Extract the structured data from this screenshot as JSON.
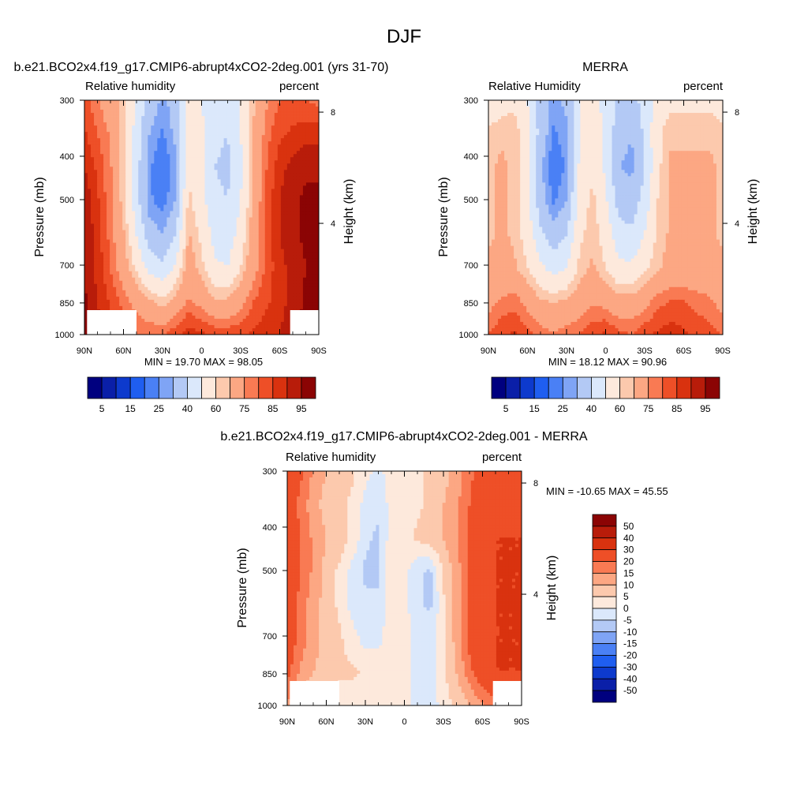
{
  "page_title": "DJF",
  "colors": {
    "rh_levels": [
      "#00007f",
      "#0a1fa8",
      "#0d3acd",
      "#1f5ef0",
      "#4a80f5",
      "#7fa4f5",
      "#b3c9f5",
      "#dbe8fb",
      "#fde9dc",
      "#fcc9ad",
      "#fca783",
      "#f97a53",
      "#ee4f27",
      "#d9320f",
      "#b81c0a",
      "#8b0404"
    ],
    "diff_levels": [
      "#00007f",
      "#0a1fa8",
      "#0d3acd",
      "#1f5ef0",
      "#4a80f5",
      "#7fa4f5",
      "#b3c9f5",
      "#dbe8fb",
      "#fde9dc",
      "#fcc9ad",
      "#fca783",
      "#f97a53",
      "#ee4f27",
      "#d9320f",
      "#b81c0a",
      "#8b0404"
    ],
    "missing": "#ffffff"
  },
  "chart_data": [
    {
      "id": "model",
      "type": "heatmap",
      "title": "b.e21.BCO2x4.f19_g17.CMIP6-abrupt4xCO2-2deg.001 (yrs 31-70)",
      "left_subtitle": "Relative humidity",
      "right_subtitle": "percent",
      "ylabel": "Pressure (mb)",
      "y2label": "Height (km)",
      "x_ticks": [
        "90N",
        "60N",
        "30N",
        "0",
        "30S",
        "60S",
        "90S"
      ],
      "y_ticks": [
        "300",
        "400",
        "500",
        "700",
        "850",
        "1000"
      ],
      "y2_ticks": [
        "8",
        "4"
      ],
      "stats": "MIN =  19.70  MAX =  98.05",
      "xlim": [
        90,
        -90
      ],
      "ylim": [
        1000,
        300
      ],
      "rows": [
        [
          82,
          76,
          70,
          62,
          48,
          36,
          28,
          34,
          52,
          50,
          44,
          42,
          50,
          64,
          74,
          80,
          82,
          80,
          78
        ],
        [
          86,
          80,
          74,
          62,
          46,
          30,
          24,
          32,
          56,
          52,
          42,
          40,
          50,
          66,
          78,
          84,
          86,
          88,
          88
        ],
        [
          90,
          84,
          76,
          62,
          44,
          26,
          20,
          28,
          58,
          52,
          40,
          38,
          48,
          66,
          80,
          88,
          92,
          94,
          94
        ],
        [
          94,
          86,
          76,
          62,
          44,
          26,
          22,
          30,
          62,
          54,
          42,
          40,
          50,
          68,
          82,
          90,
          94,
          96,
          96
        ],
        [
          94,
          88,
          78,
          66,
          50,
          34,
          30,
          40,
          66,
          58,
          46,
          44,
          54,
          70,
          82,
          90,
          94,
          96,
          96
        ],
        [
          95,
          88,
          80,
          70,
          58,
          46,
          42,
          52,
          70,
          62,
          52,
          50,
          60,
          72,
          82,
          88,
          92,
          95,
          95
        ],
        [
          96,
          90,
          84,
          78,
          72,
          66,
          62,
          68,
          76,
          72,
          66,
          66,
          72,
          80,
          84,
          88,
          92,
          96,
          96
        ],
        [
          97,
          92,
          88,
          84,
          80,
          80,
          80,
          84,
          88,
          86,
          84,
          84,
          84,
          86,
          88,
          90,
          94,
          97,
          97
        ]
      ],
      "missing_bottom": [
        [
          -90,
          -68
        ],
        [
          50,
          88
        ]
      ],
      "colorbar": {
        "orientation": "horizontal",
        "levels": [
          5,
          10,
          15,
          20,
          25,
          30,
          40,
          50,
          60,
          65,
          75,
          80,
          85,
          90,
          95
        ],
        "labels": [
          "5",
          "15",
          "25",
          "40",
          "60",
          "75",
          "85",
          "95"
        ]
      }
    },
    {
      "id": "obs",
      "type": "heatmap",
      "title": "MERRA",
      "left_subtitle": "Relative Humidity",
      "right_subtitle": "percent",
      "ylabel": "Pressure (mb)",
      "y2label": "Height (km)",
      "x_ticks": [
        "90N",
        "60N",
        "30N",
        "0",
        "30S",
        "60S",
        "90S"
      ],
      "y_ticks": [
        "300",
        "400",
        "500",
        "700",
        "850",
        "1000"
      ],
      "y2_ticks": [
        "8",
        "4"
      ],
      "stats": "MIN =  18.12  MAX =  90.96",
      "xlim": [
        90,
        -90
      ],
      "ylim": [
        1000,
        300
      ],
      "rows": [
        [
          52,
          56,
          58,
          50,
          36,
          28,
          32,
          50,
          52,
          48,
          38,
          36,
          44,
          54,
          58,
          58,
          58,
          58,
          56
        ],
        [
          62,
          64,
          64,
          54,
          36,
          24,
          28,
          50,
          56,
          48,
          34,
          30,
          42,
          58,
          64,
          64,
          64,
          64,
          62
        ],
        [
          64,
          66,
          64,
          52,
          32,
          20,
          26,
          52,
          58,
          48,
          30,
          28,
          40,
          58,
          66,
          66,
          66,
          66,
          64
        ],
        [
          64,
          66,
          64,
          52,
          34,
          24,
          30,
          54,
          62,
          52,
          36,
          34,
          44,
          60,
          66,
          66,
          66,
          66,
          64
        ],
        [
          64,
          66,
          64,
          56,
          42,
          34,
          40,
          58,
          64,
          56,
          44,
          42,
          50,
          62,
          66,
          66,
          66,
          66,
          64
        ],
        [
          66,
          68,
          66,
          60,
          52,
          46,
          50,
          62,
          66,
          60,
          52,
          52,
          58,
          64,
          68,
          68,
          68,
          68,
          66
        ],
        [
          72,
          76,
          78,
          72,
          66,
          64,
          66,
          70,
          74,
          72,
          68,
          68,
          72,
          78,
          80,
          80,
          78,
          76,
          72
        ],
        [
          80,
          84,
          86,
          82,
          78,
          76,
          78,
          80,
          84,
          86,
          82,
          80,
          84,
          86,
          88,
          86,
          84,
          82,
          80
        ]
      ],
      "missing_bottom": [],
      "colorbar": {
        "orientation": "horizontal",
        "levels": [
          5,
          10,
          15,
          20,
          25,
          30,
          40,
          50,
          60,
          65,
          75,
          80,
          85,
          90,
          95
        ],
        "labels": [
          "5",
          "15",
          "25",
          "40",
          "60",
          "75",
          "85",
          "95"
        ]
      }
    },
    {
      "id": "diff",
      "type": "heatmap",
      "title": "b.e21.BCO2x4.f19_g17.CMIP6-abrupt4xCO2-2deg.001 - MERRA",
      "left_subtitle": "Relative humidity",
      "right_subtitle": "percent",
      "ylabel": "Pressure (mb)",
      "y2label": "Height (km)",
      "x_ticks": [
        "90N",
        "60N",
        "30N",
        "0",
        "30S",
        "60S",
        "90S"
      ],
      "y_ticks": [
        "300",
        "400",
        "500",
        "700",
        "850",
        "1000"
      ],
      "y2_ticks": [
        "8",
        "4"
      ],
      "stats": "MIN = -10.65  MAX =  45.55",
      "xlim": [
        90,
        -90
      ],
      "ylim": [
        1000,
        300
      ],
      "rows": [
        [
          30,
          22,
          14,
          10,
          8,
          6,
          2,
          -2,
          3,
          3,
          4,
          6,
          8,
          12,
          18,
          24,
          26,
          24,
          22
        ],
        [
          26,
          18,
          12,
          8,
          6,
          4,
          -2,
          -4,
          2,
          2,
          4,
          6,
          10,
          14,
          20,
          26,
          28,
          26,
          26
        ],
        [
          28,
          20,
          14,
          10,
          8,
          4,
          -4,
          -6,
          3,
          3,
          6,
          8,
          10,
          14,
          22,
          28,
          30,
          30,
          30
        ],
        [
          28,
          20,
          14,
          8,
          4,
          -2,
          -6,
          -6,
          4,
          2,
          -4,
          -6,
          6,
          12,
          22,
          28,
          30,
          30,
          30
        ],
        [
          26,
          18,
          12,
          8,
          4,
          -2,
          -4,
          -4,
          3,
          2,
          -4,
          -6,
          4,
          12,
          22,
          28,
          30,
          30,
          30
        ],
        [
          25,
          18,
          12,
          8,
          6,
          2,
          -2,
          -2,
          4,
          2,
          -2,
          -2,
          4,
          12,
          22,
          28,
          30,
          30,
          30
        ],
        [
          22,
          14,
          10,
          8,
          6,
          6,
          4,
          4,
          4,
          2,
          -2,
          -2,
          4,
          10,
          18,
          26,
          30,
          30,
          30
        ],
        [
          14,
          8,
          4,
          2,
          2,
          2,
          4,
          4,
          4,
          2,
          -2,
          -4,
          3,
          6,
          10,
          14,
          18,
          16,
          16
        ]
      ],
      "missing_bottom": [
        [
          -90,
          -68
        ],
        [
          50,
          88
        ]
      ],
      "colorbar": {
        "orientation": "vertical",
        "levels": [
          -50,
          -40,
          -30,
          -20,
          -15,
          -10,
          -5,
          0,
          5,
          10,
          15,
          20,
          30,
          40,
          50
        ],
        "labels": [
          "50",
          "40",
          "30",
          "20",
          "15",
          "10",
          "5",
          "0",
          "-5",
          "-10",
          "-15",
          "-20",
          "-30",
          "-40",
          "-50"
        ]
      }
    }
  ]
}
